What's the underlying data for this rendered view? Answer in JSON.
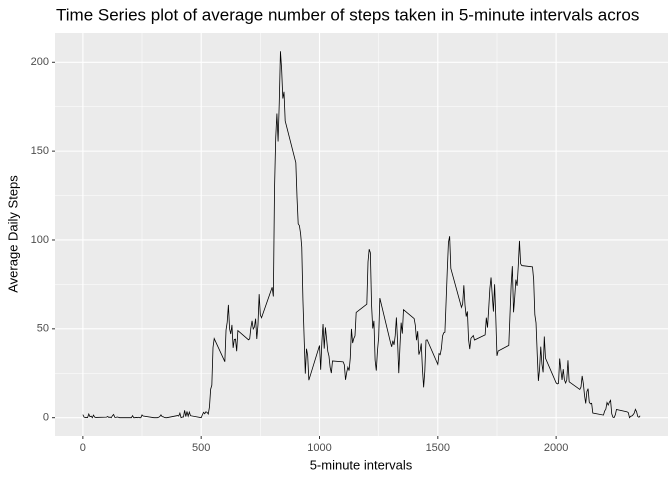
{
  "chart_data": {
    "type": "line",
    "title": "Time Series plot of average number of steps taken in 5-minute intervals acros",
    "x_label": "5-minute intervals",
    "y_label": "Average Daily Steps",
    "color": "#000000",
    "grid": true,
    "xlim": [
      -117.75,
      2472.75
    ],
    "xticks": [
      0,
      500,
      1000,
      1500,
      2000
    ],
    "ylim": [
      -10.31,
      216.48
    ],
    "yticks": [
      0,
      50,
      100,
      150,
      200
    ],
    "x": [
      0,
      5,
      10,
      15,
      20,
      25,
      30,
      35,
      40,
      45,
      50,
      55,
      100,
      105,
      110,
      115,
      120,
      125,
      130,
      135,
      140,
      145,
      150,
      155,
      200,
      205,
      210,
      215,
      220,
      225,
      230,
      235,
      240,
      245,
      250,
      255,
      300,
      305,
      310,
      315,
      320,
      325,
      330,
      335,
      340,
      345,
      350,
      355,
      400,
      405,
      410,
      415,
      420,
      425,
      430,
      435,
      440,
      445,
      450,
      455,
      500,
      505,
      510,
      515,
      520,
      525,
      530,
      535,
      540,
      545,
      550,
      555,
      600,
      605,
      610,
      615,
      620,
      625,
      630,
      635,
      640,
      645,
      650,
      655,
      700,
      705,
      710,
      715,
      720,
      725,
      730,
      735,
      740,
      745,
      750,
      755,
      800,
      805,
      810,
      815,
      820,
      825,
      830,
      835,
      840,
      845,
      850,
      855,
      900,
      905,
      910,
      915,
      920,
      925,
      930,
      935,
      940,
      945,
      950,
      955,
      1000,
      1005,
      1010,
      1015,
      1020,
      1025,
      1030,
      1035,
      1040,
      1045,
      1050,
      1055,
      1100,
      1105,
      1110,
      1115,
      1120,
      1125,
      1130,
      1135,
      1140,
      1145,
      1150,
      1155,
      1200,
      1205,
      1210,
      1215,
      1220,
      1225,
      1230,
      1235,
      1240,
      1245,
      1250,
      1255,
      1300,
      1305,
      1310,
      1315,
      1320,
      1325,
      1330,
      1335,
      1340,
      1345,
      1350,
      1355,
      1400,
      1405,
      1410,
      1415,
      1420,
      1425,
      1430,
      1435,
      1440,
      1445,
      1450,
      1455,
      1500,
      1505,
      1510,
      1515,
      1520,
      1525,
      1530,
      1535,
      1540,
      1545,
      1550,
      1555,
      1600,
      1605,
      1610,
      1615,
      1620,
      1625,
      1630,
      1635,
      1640,
      1645,
      1650,
      1655,
      1700,
      1705,
      1710,
      1715,
      1720,
      1725,
      1730,
      1735,
      1740,
      1745,
      1750,
      1755,
      1800,
      1805,
      1810,
      1815,
      1820,
      1825,
      1830,
      1835,
      1840,
      1845,
      1850,
      1855,
      1900,
      1905,
      1910,
      1915,
      1920,
      1925,
      1930,
      1935,
      1940,
      1945,
      1950,
      1955,
      2000,
      2005,
      2010,
      2015,
      2020,
      2025,
      2030,
      2035,
      2040,
      2045,
      2050,
      2055,
      2100,
      2105,
      2110,
      2115,
      2120,
      2125,
      2130,
      2135,
      2140,
      2145,
      2150,
      2155,
      2200,
      2205,
      2210,
      2215,
      2220,
      2225,
      2230,
      2235,
      2240,
      2245,
      2250,
      2255,
      2300,
      2305,
      2310,
      2315,
      2320,
      2325,
      2330,
      2335,
      2340,
      2345,
      2350,
      2355
    ],
    "values": [
      1.72,
      0.34,
      0.13,
      0.15,
      0.08,
      2.09,
      0.53,
      0.87,
      0,
      1.47,
      0.3,
      0.13,
      0.32,
      0.68,
      0.15,
      0.34,
      0,
      1.11,
      1.83,
      0.17,
      0.17,
      0.38,
      0.26,
      0,
      0,
      0,
      1.13,
      0,
      0,
      0.13,
      0,
      0.23,
      0,
      0,
      1.55,
      0.94,
      0,
      0,
      0,
      0,
      0.21,
      0.62,
      1.62,
      0.58,
      0.49,
      0.08,
      0,
      0,
      1.19,
      0.94,
      2.57,
      0,
      0.34,
      0.36,
      4.11,
      0.66,
      3.49,
      0.83,
      3.11,
      1.11,
      0,
      1.57,
      3,
      2.25,
      3.32,
      2.96,
      2.09,
      6.06,
      16,
      18.3,
      39.5,
      44.5,
      31.5,
      49.3,
      53.8,
      63.5,
      50,
      47.1,
      52.2,
      39.3,
      44,
      44.2,
      37.4,
      49,
      43.8,
      44.4,
      50.5,
      54.5,
      49.9,
      51,
      55.7,
      44.3,
      52.3,
      69.5,
      57.8,
      56.2,
      73.4,
      68.2,
      129.4,
      157.5,
      171.2,
      155.4,
      177.3,
      206.17,
      195.9,
      179.6,
      183.4,
      167,
      143.5,
      124,
      109.1,
      108.1,
      103.7,
      95.97,
      66.2,
      45.2,
      24.8,
      38.8,
      34.98,
      21.1,
      40.6,
      26.98,
      42.4,
      52.7,
      38.9,
      50.8,
      44.3,
      37.4,
      34.7,
      28.3,
      25.1,
      31.9,
      31.4,
      29.7,
      21.3,
      25.5,
      28.4,
      26.5,
      33.4,
      49.98,
      42,
      44.6,
      46,
      59.2,
      63.9,
      87.7,
      94.8,
      92.8,
      63.4,
      50.2,
      54.5,
      32.4,
      26.5,
      37.7,
      45.1,
      67.3,
      42.3,
      39.9,
      43.3,
      40.98,
      46.2,
      56.4,
      42.75,
      25.1,
      39.97,
      53.5,
      47.3,
      60.8,
      55.75,
      51.96,
      43.6,
      48.7,
      35.5,
      37.5,
      41.8,
      27.5,
      17.1,
      26.1,
      43.6,
      43.8,
      30,
      36.1,
      35.5,
      38.8,
      45.96,
      47.75,
      48.1,
      65.3,
      82.9,
      98.7,
      102.1,
      83.96,
      62.1,
      64.1,
      74.5,
      63.2,
      56.9,
      59.8,
      43.9,
      38.6,
      44.7,
      45.5,
      46.2,
      43.7,
      46.6,
      56.3,
      50.7,
      61.2,
      72.7,
      78.9,
      68.9,
      59.7,
      75.1,
      56.5,
      34.8,
      37.5,
      40.7,
      58,
      74.7,
      85.3,
      59.3,
      67.8,
      77.7,
      74.2,
      85.3,
      99.5,
      86.6,
      85.6,
      84.9,
      77.8,
      58,
      53.4,
      36.3,
      20.7,
      27.4,
      40,
      30.2,
      25.5,
      45.7,
      33.5,
      19.6,
      19,
      19.3,
      33.3,
      26.8,
      21.2,
      27.3,
      21.3,
      19.5,
      21.3,
      32.3,
      20.2,
      15.9,
      17.2,
      23.5,
      19.2,
      12.5,
      8,
      14.7,
      16.3,
      8.7,
      7.8,
      8.1,
      2.6,
      1.45,
      3.7,
      4.8,
      8.5,
      7.1,
      8.7,
      9.75,
      2.2,
      0.3,
      0.1,
      1.6,
      4.6,
      3.3,
      2.85,
      0,
      0.8,
      0.96,
      1.6,
      2.6,
      4.7,
      3.3,
      0.64,
      0.23,
      1.08
    ]
  }
}
